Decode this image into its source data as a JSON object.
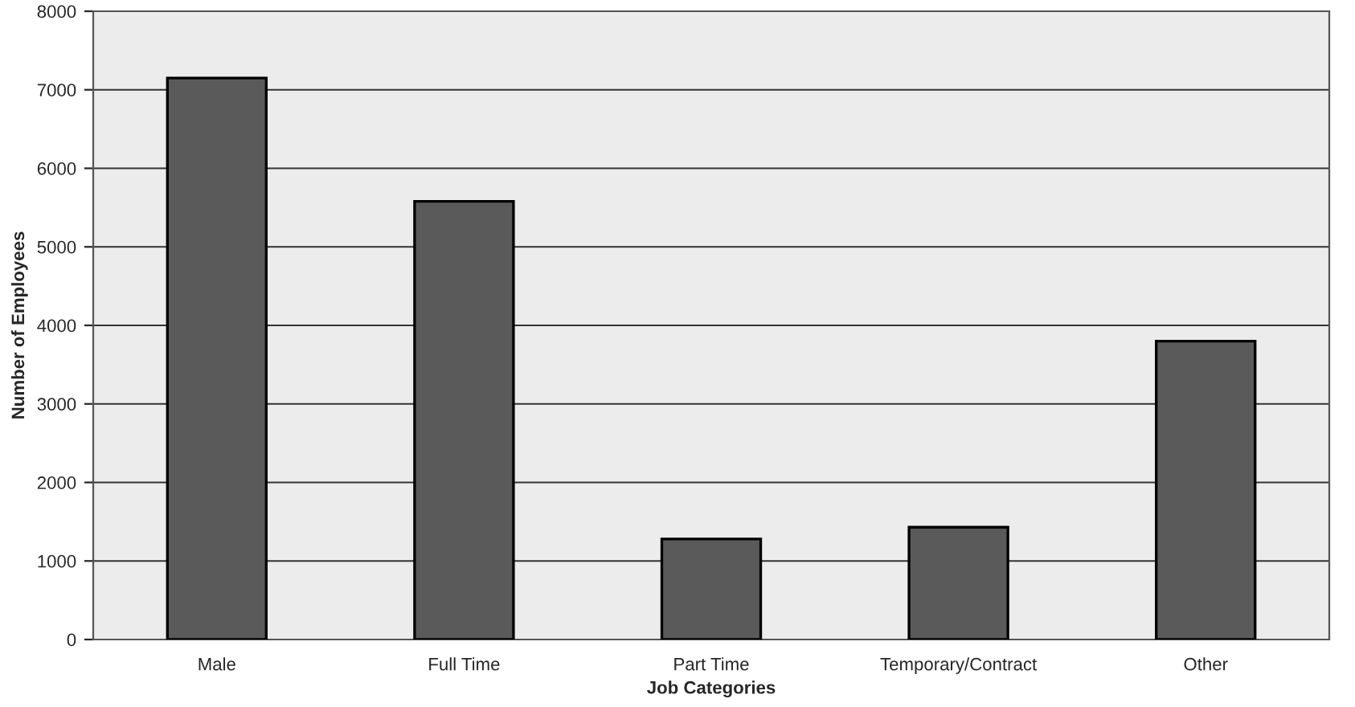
{
  "chart_data": {
    "type": "bar",
    "xlabel": "Job Categories",
    "ylabel": "Number of Employees",
    "categories": [
      "Male",
      "Full Time",
      "Part Time",
      "Temporary/Contract",
      "Other"
    ],
    "values": [
      7150,
      5580,
      1280,
      1430,
      3800
    ],
    "color": "#5a5a5a",
    "ylim": [
      0,
      8000
    ],
    "yticks": [
      0,
      1000,
      2000,
      3000,
      4000,
      5000,
      6000,
      7000,
      8000
    ],
    "grid": "y",
    "legend": false
  }
}
